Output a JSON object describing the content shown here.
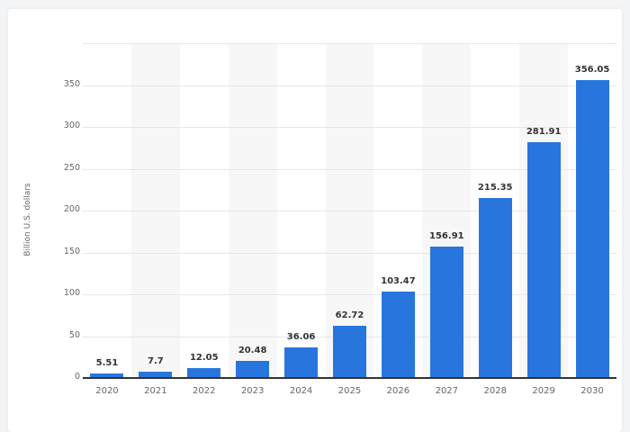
{
  "chart_data": {
    "type": "bar",
    "title": "",
    "xlabel": "",
    "ylabel": "Billion U.S. dollars",
    "categories": [
      "2020",
      "2021",
      "2022",
      "2023",
      "2024",
      "2025",
      "2026",
      "2027",
      "2028",
      "2029",
      "2030"
    ],
    "values": [
      5.51,
      7.7,
      12.05,
      20.48,
      36.06,
      62.72,
      103.47,
      156.91,
      215.35,
      281.91,
      356.05
    ],
    "value_labels": [
      "5.51",
      "7.7",
      "12.05",
      "20.48",
      "36.06",
      "62.72",
      "103.47",
      "156.91",
      "215.35",
      "281.91",
      "356.05"
    ],
    "ylim": [
      0,
      400
    ],
    "yticks": [
      "0",
      "50",
      "100",
      "150",
      "200",
      "250",
      "300",
      "350"
    ],
    "grid": true,
    "bar_color": "#2876dd",
    "legend": null
  }
}
